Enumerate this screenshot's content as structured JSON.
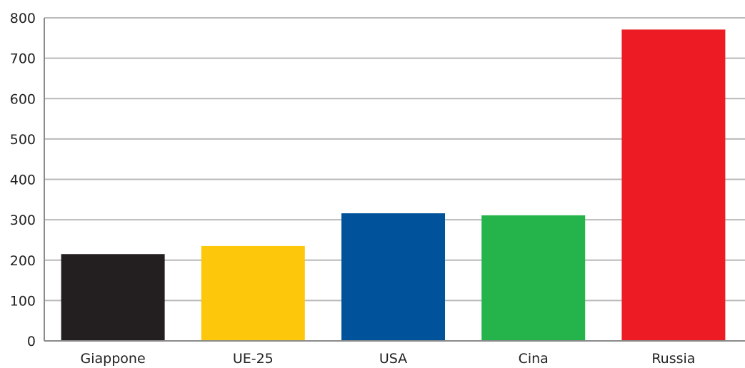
{
  "chart_data": {
    "type": "bar",
    "title": "",
    "xlabel": "",
    "ylabel": "",
    "categories": [
      "Giappone",
      "UE-25",
      "USA",
      "Cina",
      "Russia"
    ],
    "values": [
      215,
      235,
      316,
      311,
      771
    ],
    "colors": [
      "#231f20",
      "#fdc70c",
      "#00539b",
      "#25b34b",
      "#ed1c24"
    ],
    "yticks": [
      0,
      100,
      200,
      300,
      400,
      500,
      600,
      700,
      800
    ],
    "ylim": [
      0,
      800
    ],
    "grid": true,
    "legend": "none"
  }
}
